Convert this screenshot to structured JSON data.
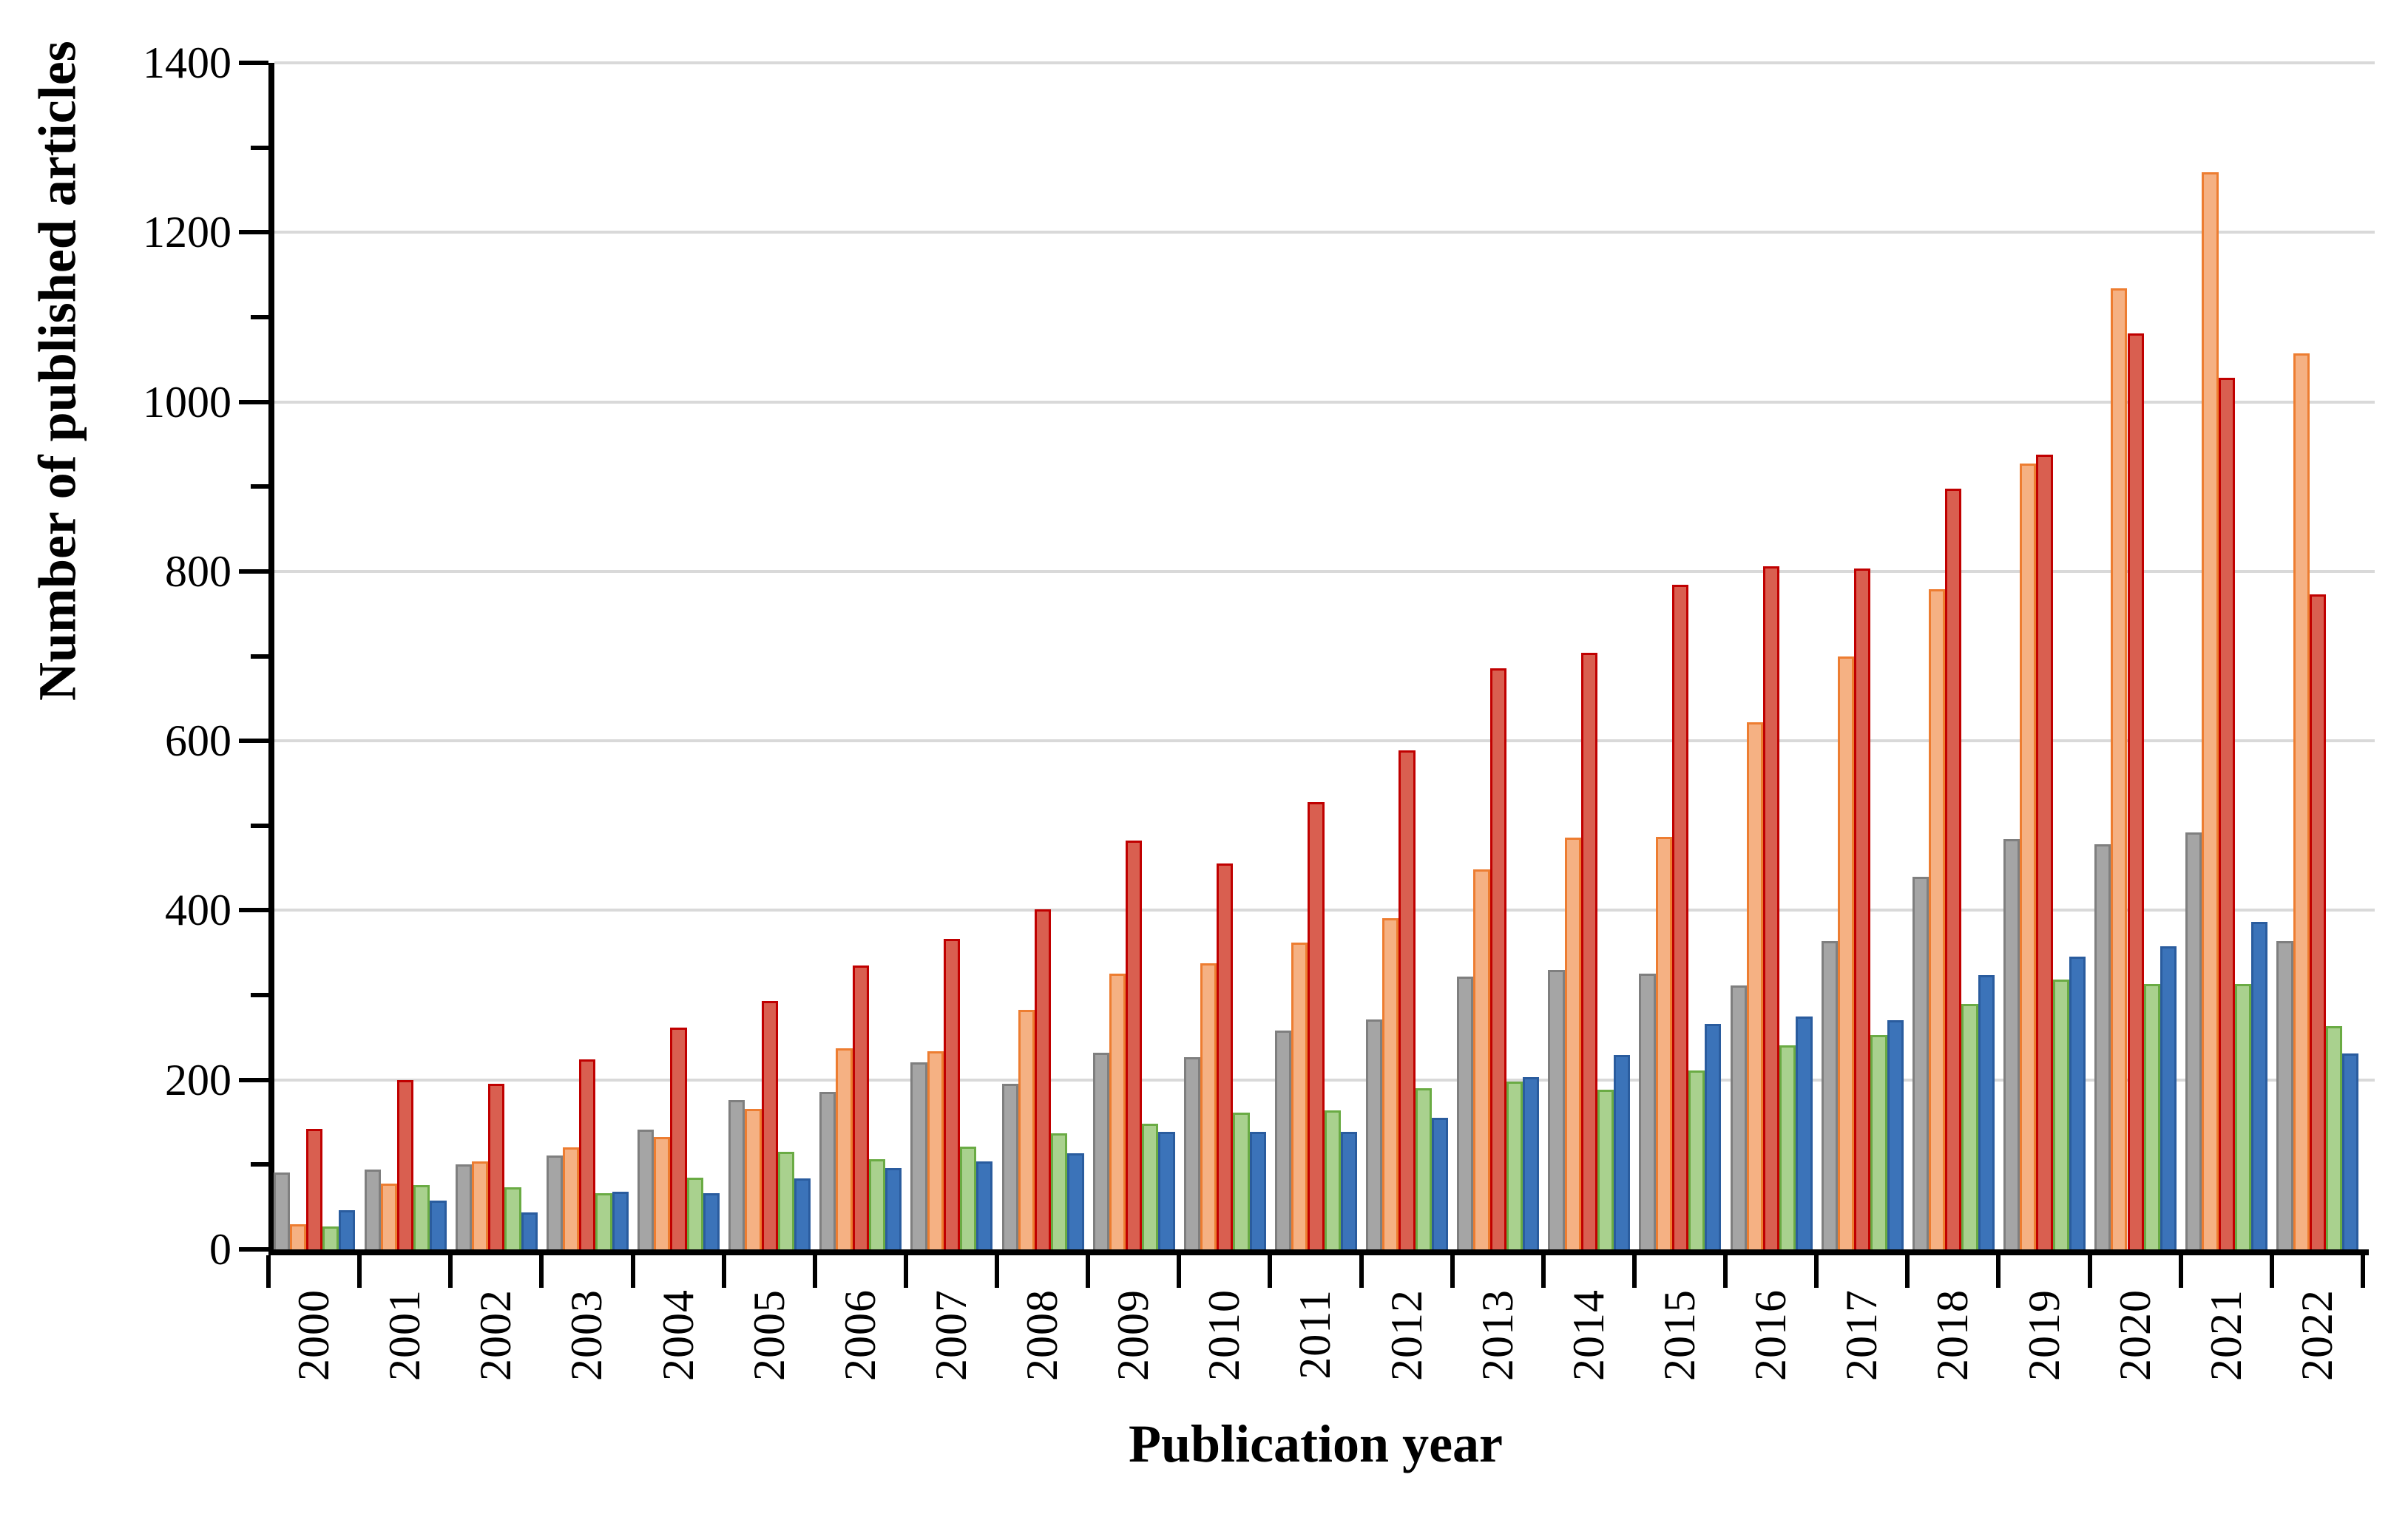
{
  "chart_data": {
    "type": "bar",
    "title": "",
    "xlabel": "Publication year",
    "ylabel": "Number of published articles",
    "ylim": [
      0,
      1400
    ],
    "ytick_major_interval": 200,
    "ytick_minor_interval": 100,
    "grid": "horizontal",
    "gridline_color": "#D9D9D9",
    "legend_position": "none",
    "y_tick_labels": [
      "0",
      "200",
      "400",
      "600",
      "800",
      "1000",
      "1200",
      "1400"
    ],
    "categories": [
      "2000",
      "2001",
      "2002",
      "2003",
      "2004",
      "2005",
      "2006",
      "2007",
      "2008",
      "2009",
      "2010",
      "2011",
      "2012",
      "2013",
      "2014",
      "2015",
      "2016",
      "2017",
      "2018",
      "2019",
      "2020",
      "2021",
      "2022"
    ],
    "series": [
      {
        "name": "series-1",
        "fill": "#A5A5A5",
        "border": "#7F7F7F",
        "values": [
          91,
          94,
          100,
          111,
          141,
          176,
          186,
          221,
          195,
          232,
          227,
          258,
          271,
          322,
          330,
          325,
          311,
          364,
          440,
          484,
          478,
          492,
          364
        ]
      },
      {
        "name": "series-2",
        "fill": "#F5B183",
        "border": "#ED7D31",
        "values": [
          30,
          78,
          104,
          120,
          133,
          166,
          237,
          234,
          283,
          325,
          338,
          362,
          391,
          448,
          486,
          487,
          622,
          700,
          779,
          927,
          1134,
          1271,
          1057
        ]
      },
      {
        "name": "series-3",
        "fill": "#D95F50",
        "border": "#C00000",
        "values": [
          142,
          200,
          195,
          224,
          262,
          293,
          335,
          366,
          401,
          482,
          455,
          528,
          589,
          686,
          704,
          784,
          806,
          803,
          898,
          938,
          1081,
          1028,
          773
        ]
      },
      {
        "name": "series-4",
        "fill": "#A9D18E",
        "border": "#6AAB44",
        "values": [
          27,
          76,
          73,
          66,
          85,
          115,
          106,
          121,
          137,
          148,
          161,
          164,
          190,
          198,
          188,
          211,
          241,
          253,
          290,
          318,
          313,
          313,
          263
        ]
      },
      {
        "name": "series-5",
        "fill": "#3B73B9",
        "border": "#2A5C9E",
        "values": [
          46,
          58,
          44,
          68,
          66,
          84,
          96,
          104,
          113,
          139,
          139,
          139,
          155,
          203,
          229,
          266,
          275,
          270,
          324,
          345,
          358,
          386,
          231
        ]
      }
    ]
  }
}
